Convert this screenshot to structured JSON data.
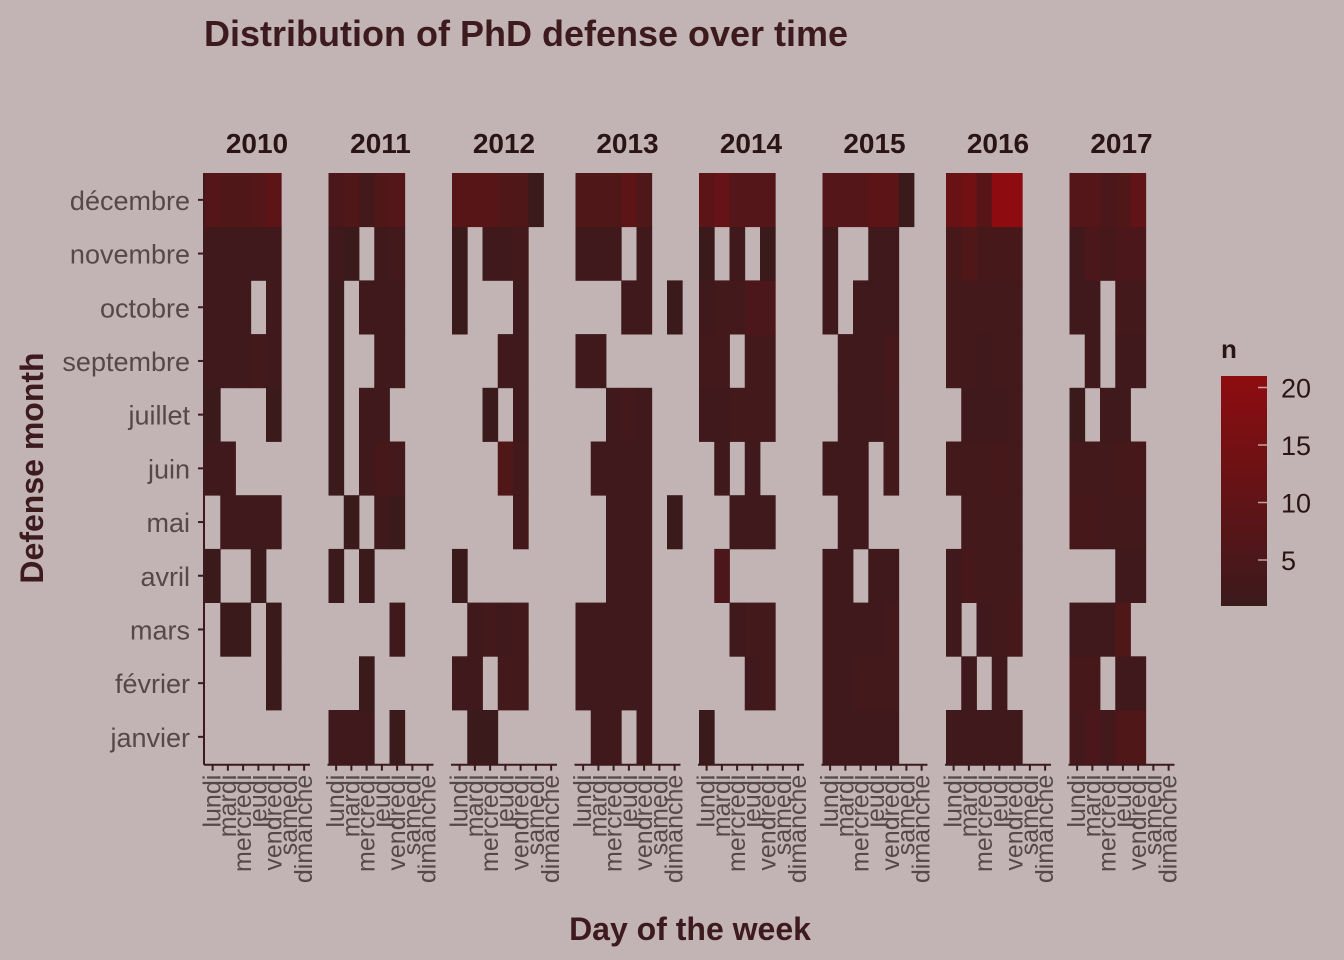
{
  "chart_data": {
    "type": "heatmap",
    "title": "Distribution of PhD defense over time",
    "xlabel": "Day of the week",
    "ylabel": "Defense month",
    "facet_by": "year",
    "facets": [
      "2010",
      "2011",
      "2012",
      "2013",
      "2014",
      "2015",
      "2016",
      "2017"
    ],
    "days": [
      "lundi",
      "mardi",
      "mercredi",
      "jeudi",
      "vendredi",
      "samedi",
      "dimanche"
    ],
    "months": [
      "janvier",
      "février",
      "mars",
      "avril",
      "mai",
      "juin",
      "juillet",
      "septembre",
      "octobre",
      "novembre",
      "décembre"
    ],
    "legend": {
      "title": "n",
      "min": 1,
      "max": 21,
      "ticks": [
        5,
        10,
        15,
        20
      ],
      "position": "right"
    },
    "colors": {
      "low": "#3b1a1c",
      "high": "#8e0c10",
      "background": "#c2b4b4"
    },
    "values_note": "values[year][month] lists n for lundi..dimanche; 0 = no defense (empty tile)",
    "values": {
      "2010": {
        "janvier": [
          0,
          0,
          0,
          0,
          0,
          0,
          0
        ],
        "février": [
          0,
          0,
          0,
          0,
          1,
          0,
          0
        ],
        "mars": [
          0,
          1,
          1,
          0,
          1,
          0,
          0
        ],
        "avril": [
          1,
          0,
          0,
          1,
          0,
          0,
          0
        ],
        "mai": [
          0,
          2,
          2,
          2,
          2,
          0,
          0
        ],
        "juin": [
          2,
          2,
          0,
          0,
          0,
          0,
          0
        ],
        "juillet": [
          1,
          0,
          0,
          0,
          1,
          0,
          0
        ],
        "septembre": [
          2,
          2,
          2,
          3,
          2,
          0,
          0
        ],
        "octobre": [
          2,
          2,
          2,
          0,
          2,
          0,
          0
        ],
        "novembre": [
          2,
          2,
          2,
          2,
          2,
          0,
          0
        ],
        "décembre": [
          7,
          6,
          6,
          7,
          9,
          0,
          0
        ]
      },
      "2011": {
        "janvier": [
          2,
          2,
          2,
          0,
          1,
          0,
          0
        ],
        "février": [
          0,
          0,
          1,
          0,
          0,
          0,
          0
        ],
        "mars": [
          0,
          0,
          0,
          0,
          2,
          0,
          0
        ],
        "avril": [
          1,
          0,
          1,
          0,
          0,
          0,
          0
        ],
        "mai": [
          0,
          1,
          0,
          2,
          1,
          0,
          0
        ],
        "juin": [
          1,
          0,
          2,
          4,
          3,
          0,
          0
        ],
        "juillet": [
          1,
          0,
          2,
          2,
          0,
          0,
          0
        ],
        "septembre": [
          1,
          0,
          0,
          2,
          2,
          0,
          0
        ],
        "octobre": [
          1,
          0,
          2,
          2,
          2,
          0,
          0
        ],
        "novembre": [
          2,
          1,
          0,
          2,
          3,
          0,
          0
        ],
        "décembre": [
          5,
          6,
          3,
          6,
          7,
          0,
          0
        ]
      },
      "2012": {
        "janvier": [
          0,
          1,
          1,
          0,
          0,
          0,
          0
        ],
        "février": [
          2,
          2,
          0,
          3,
          3,
          0,
          0
        ],
        "mars": [
          0,
          2,
          3,
          2,
          3,
          0,
          0
        ],
        "avril": [
          1,
          0,
          0,
          0,
          0,
          0,
          0
        ],
        "mai": [
          0,
          0,
          0,
          0,
          3,
          0,
          0
        ],
        "juin": [
          0,
          0,
          0,
          6,
          3,
          0,
          0
        ],
        "juillet": [
          0,
          0,
          1,
          0,
          2,
          0,
          0
        ],
        "septembre": [
          0,
          0,
          0,
          2,
          2,
          0,
          0
        ],
        "octobre": [
          1,
          0,
          0,
          0,
          2,
          0,
          0
        ],
        "novembre": [
          1,
          0,
          2,
          2,
          3,
          0,
          0
        ],
        "décembre": [
          8,
          8,
          8,
          6,
          6,
          1,
          0
        ]
      },
      "2013": {
        "janvier": [
          0,
          2,
          2,
          0,
          2,
          0,
          0
        ],
        "février": [
          2,
          2,
          2,
          2,
          2,
          0,
          0
        ],
        "mars": [
          2,
          2,
          2,
          2,
          2,
          0,
          0
        ],
        "avril": [
          0,
          0,
          2,
          2,
          2,
          0,
          0
        ],
        "mai": [
          0,
          0,
          2,
          2,
          2,
          0,
          1
        ],
        "juin": [
          0,
          2,
          2,
          2,
          2,
          0,
          0
        ],
        "juillet": [
          0,
          0,
          2,
          3,
          2,
          0,
          0
        ],
        "septembre": [
          2,
          2,
          0,
          0,
          0,
          0,
          0
        ],
        "octobre": [
          0,
          0,
          0,
          2,
          2,
          0,
          1
        ],
        "novembre": [
          2,
          2,
          2,
          0,
          2,
          0,
          0
        ],
        "décembre": [
          6,
          6,
          6,
          9,
          6,
          0,
          0
        ]
      },
      "2014": {
        "janvier": [
          1,
          0,
          0,
          0,
          0,
          0,
          0
        ],
        "février": [
          0,
          0,
          0,
          2,
          3,
          0,
          0
        ],
        "mars": [
          0,
          0,
          2,
          3,
          3,
          0,
          0
        ],
        "avril": [
          0,
          5,
          0,
          0,
          0,
          0,
          0
        ],
        "mai": [
          0,
          0,
          2,
          2,
          2,
          0,
          0
        ],
        "juin": [
          0,
          2,
          0,
          2,
          0,
          0,
          0
        ],
        "juillet": [
          2,
          2,
          3,
          3,
          3,
          0,
          0
        ],
        "septembre": [
          3,
          3,
          0,
          3,
          3,
          0,
          0
        ],
        "octobre": [
          2,
          3,
          3,
          5,
          5,
          0,
          0
        ],
        "novembre": [
          1,
          0,
          2,
          0,
          1,
          0,
          0
        ],
        "décembre": [
          9,
          11,
          7,
          7,
          7,
          0,
          0
        ]
      },
      "2015": {
        "janvier": [
          2,
          2,
          2,
          2,
          2,
          0,
          0
        ],
        "février": [
          2,
          2,
          3,
          3,
          3,
          0,
          0
        ],
        "mars": [
          2,
          2,
          2,
          2,
          3,
          0,
          0
        ],
        "avril": [
          2,
          2,
          0,
          2,
          2,
          0,
          0
        ],
        "mai": [
          0,
          2,
          2,
          0,
          0,
          0,
          0
        ],
        "juin": [
          2,
          2,
          2,
          0,
          3,
          0,
          0
        ],
        "juillet": [
          0,
          2,
          2,
          2,
          3,
          0,
          0
        ],
        "septembre": [
          0,
          2,
          2,
          2,
          4,
          0,
          0
        ],
        "octobre": [
          2,
          0,
          2,
          2,
          2,
          0,
          0
        ],
        "novembre": [
          2,
          0,
          0,
          2,
          2,
          0,
          0
        ],
        "décembre": [
          7,
          7,
          7,
          9,
          9,
          1,
          0
        ]
      },
      "2016": {
        "janvier": [
          2,
          2,
          2,
          2,
          2,
          0,
          0
        ],
        "février": [
          0,
          2,
          0,
          2,
          0,
          0,
          0
        ],
        "mars": [
          2,
          0,
          2,
          3,
          4,
          0,
          0
        ],
        "avril": [
          2,
          4,
          3,
          3,
          3,
          0,
          0
        ],
        "mai": [
          0,
          3,
          3,
          3,
          3,
          0,
          0
        ],
        "juin": [
          3,
          3,
          3,
          4,
          3,
          0,
          0
        ],
        "juillet": [
          0,
          2,
          2,
          2,
          3,
          0,
          0
        ],
        "septembre": [
          3,
          3,
          2,
          3,
          3,
          0,
          0
        ],
        "octobre": [
          3,
          3,
          3,
          3,
          3,
          0,
          0
        ],
        "novembre": [
          4,
          6,
          4,
          4,
          4,
          0,
          0
        ],
        "décembre": [
          12,
          14,
          8,
          21,
          21,
          0,
          0
        ]
      },
      "2017": {
        "janvier": [
          3,
          5,
          3,
          6,
          6,
          0,
          0
        ],
        "février": [
          4,
          4,
          0,
          2,
          2,
          0,
          0
        ],
        "mars": [
          2,
          2,
          2,
          6,
          0,
          0,
          0
        ],
        "avril": [
          0,
          0,
          0,
          2,
          2,
          0,
          0
        ],
        "mai": [
          4,
          4,
          3,
          3,
          3,
          0,
          0
        ],
        "juin": [
          3,
          3,
          3,
          4,
          4,
          0,
          0
        ],
        "juillet": [
          1,
          0,
          2,
          2,
          0,
          0,
          0
        ],
        "septembre": [
          0,
          2,
          0,
          2,
          2,
          0,
          0
        ],
        "octobre": [
          2,
          2,
          0,
          3,
          3,
          0,
          0
        ],
        "novembre": [
          2,
          5,
          4,
          5,
          5,
          0,
          0
        ],
        "décembre": [
          7,
          7,
          5,
          6,
          10,
          0,
          0
        ]
      }
    }
  }
}
